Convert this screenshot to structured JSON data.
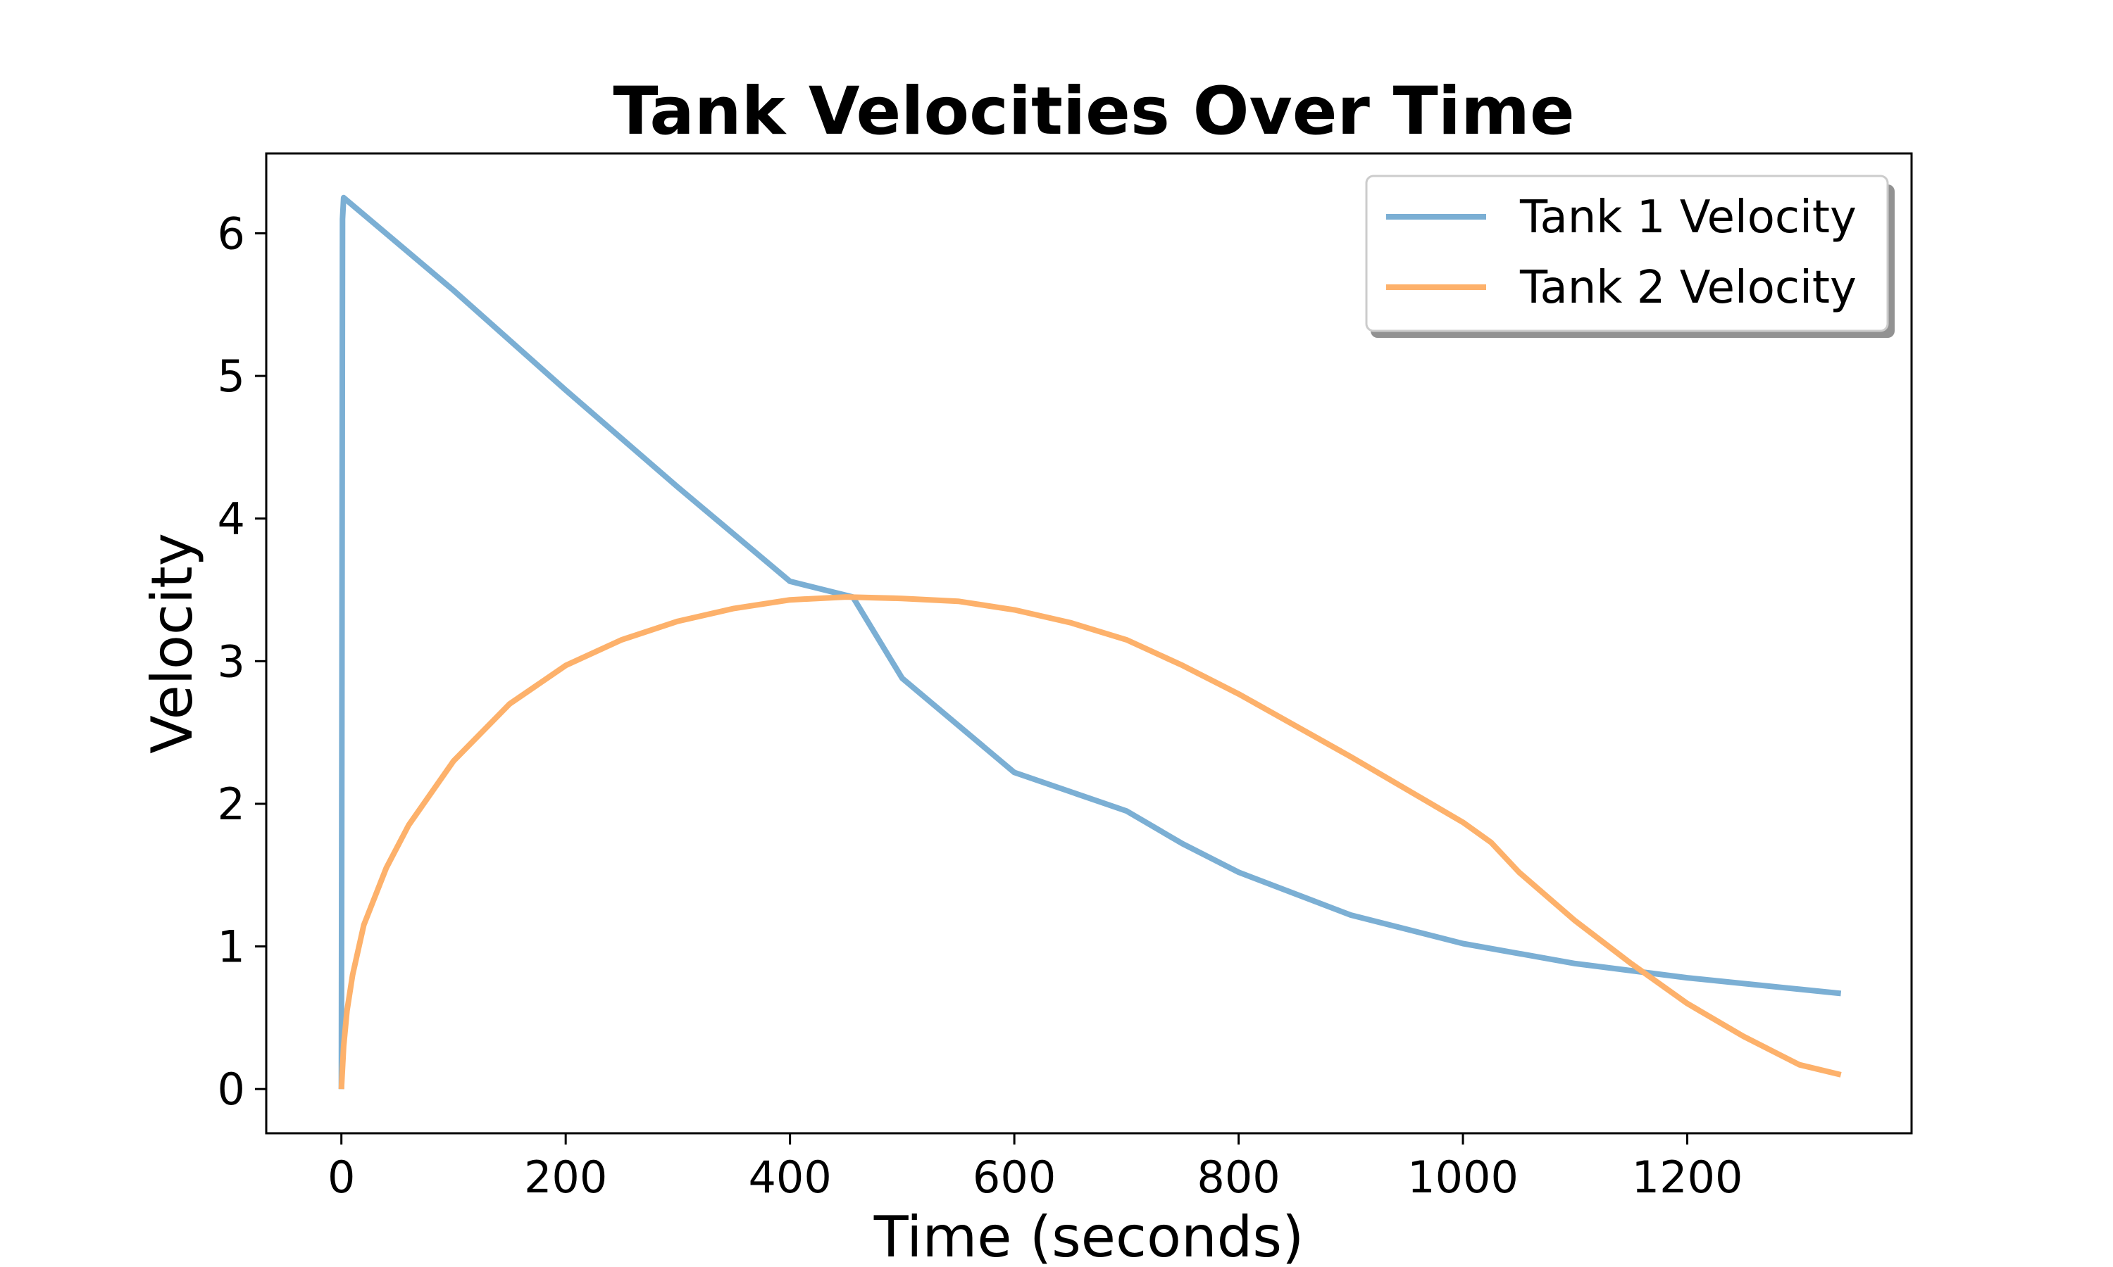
{
  "chart_data": {
    "type": "line",
    "title": "Tank Velocities Over Time",
    "xlabel": "Time (seconds)",
    "ylabel": "Velocity",
    "xlim": [
      -67,
      1400
    ],
    "ylim": [
      -0.31,
      6.56
    ],
    "xticks": [
      0,
      200,
      400,
      600,
      800,
      1000,
      1200
    ],
    "yticks": [
      0,
      1,
      2,
      3,
      4,
      5,
      6
    ],
    "grid": false,
    "legend_position": "top-right",
    "series": [
      {
        "name": "Tank 1 Velocity",
        "color": "#7bafd4",
        "points": [
          [
            0,
            0
          ],
          [
            0.5,
            3.0
          ],
          [
            1,
            6.1
          ],
          [
            2,
            6.25
          ],
          [
            100,
            5.6
          ],
          [
            200,
            4.9
          ],
          [
            300,
            4.22
          ],
          [
            400,
            3.56
          ],
          [
            456,
            3.45
          ],
          [
            500,
            2.88
          ],
          [
            600,
            2.22
          ],
          [
            700,
            1.95
          ],
          [
            750,
            1.72
          ],
          [
            800,
            1.52
          ],
          [
            900,
            1.22
          ],
          [
            1000,
            1.02
          ],
          [
            1100,
            0.88
          ],
          [
            1200,
            0.78
          ],
          [
            1300,
            0.7
          ],
          [
            1337,
            0.67
          ]
        ]
      },
      {
        "name": "Tank 2 Velocity",
        "color": "#fdb16b",
        "points": [
          [
            0,
            0
          ],
          [
            2,
            0.3
          ],
          [
            5,
            0.55
          ],
          [
            10,
            0.8
          ],
          [
            20,
            1.15
          ],
          [
            40,
            1.55
          ],
          [
            60,
            1.85
          ],
          [
            100,
            2.3
          ],
          [
            150,
            2.7
          ],
          [
            200,
            2.97
          ],
          [
            250,
            3.15
          ],
          [
            300,
            3.28
          ],
          [
            350,
            3.37
          ],
          [
            400,
            3.43
          ],
          [
            450,
            3.45
          ],
          [
            500,
            3.44
          ],
          [
            550,
            3.42
          ],
          [
            600,
            3.36
          ],
          [
            650,
            3.27
          ],
          [
            700,
            3.15
          ],
          [
            750,
            2.97
          ],
          [
            800,
            2.77
          ],
          [
            850,
            2.55
          ],
          [
            900,
            2.33
          ],
          [
            950,
            2.1
          ],
          [
            1000,
            1.87
          ],
          [
            1025,
            1.73
          ],
          [
            1050,
            1.52
          ],
          [
            1100,
            1.18
          ],
          [
            1150,
            0.88
          ],
          [
            1200,
            0.6
          ],
          [
            1250,
            0.37
          ],
          [
            1300,
            0.17
          ],
          [
            1337,
            0.1
          ]
        ]
      }
    ]
  }
}
